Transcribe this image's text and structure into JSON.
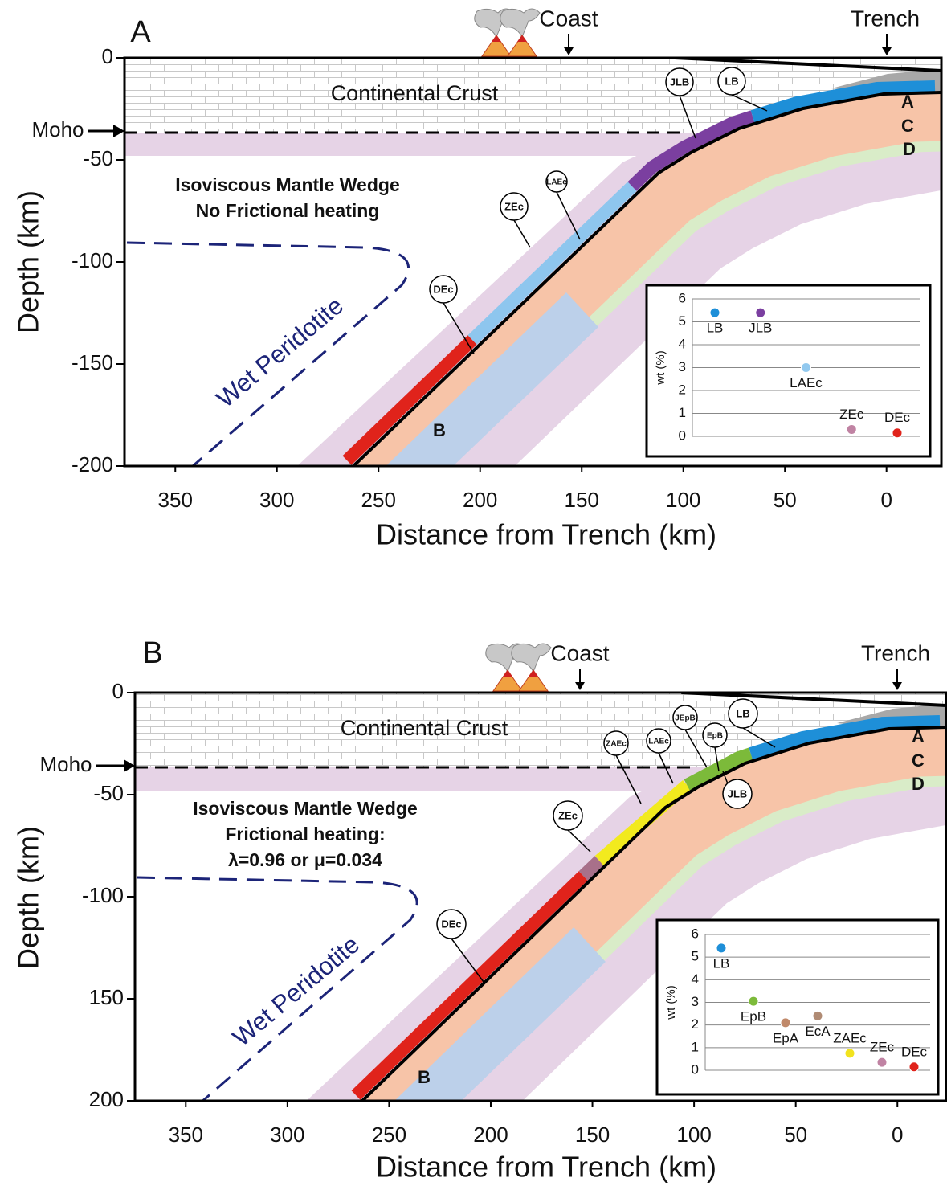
{
  "chart_data": [
    {
      "type": "subduction-section",
      "title": "A",
      "xlabel": "Distance from Trench (km)",
      "ylabel": "Depth (km)",
      "xlim": [
        375,
        -27
      ],
      "ylim": [
        -200,
        0
      ],
      "xticks": [
        350,
        300,
        250,
        200,
        150,
        100,
        50,
        0
      ],
      "yticks": [
        0,
        -50,
        -100,
        -150,
        -200
      ],
      "labels": {
        "coast": "Coast",
        "trench": "Trench",
        "crust": "Continental Crust",
        "moho": "Moho",
        "wedge": [
          "Isoviscous Mantle Wedge",
          "No Frictional heating"
        ],
        "peridotite": "Wet Peridotite",
        "layers": [
          "A",
          "C",
          "D",
          "B"
        ],
        "phases": [
          "JLB",
          "LB",
          "LAEc",
          "ZEc",
          "DEc"
        ]
      },
      "inset": {
        "type": "scatter",
        "ylabel": "wt (%)",
        "ylim": [
          0,
          6
        ],
        "yticks": [
          0,
          1,
          2,
          3,
          4,
          5,
          6
        ],
        "categories": [
          "LB",
          "JLB",
          "LAEc",
          "ZEc",
          "DEc"
        ],
        "values": [
          5.4,
          5.4,
          3.0,
          0.3,
          0.15
        ],
        "colors": [
          "#1e8fd8",
          "#7b3fa0",
          "#92c9ef",
          "#c083a3",
          "#e0231b"
        ]
      }
    },
    {
      "type": "subduction-section",
      "title": "B",
      "xlabel": "Distance from Trench (km)",
      "ylabel": "Depth (km)",
      "xlim": [
        375,
        -24
      ],
      "ylim": [
        -200,
        0
      ],
      "xticks": [
        350,
        300,
        250,
        200,
        150,
        100,
        50,
        0
      ],
      "yticks": [
        0,
        -50,
        -100,
        {
          "value": -150,
          "label": "150"
        },
        {
          "value": -200,
          "label": "200"
        }
      ],
      "labels": {
        "coast": "Coast",
        "trench": "Trench",
        "crust": "Continental Crust",
        "moho": "Moho",
        "wedge": [
          "Isoviscous Mantle Wedge",
          "Frictional heating:",
          "λ=0.96 or μ=0.034"
        ],
        "peridotite": "Wet Peridotite",
        "layers": [
          "A",
          "C",
          "D",
          "B"
        ],
        "phases": [
          "ZAEc",
          "LAEc",
          "JEpB",
          "EpB",
          "LB",
          "JLB",
          "ZEc",
          "DEc"
        ]
      },
      "inset": {
        "type": "scatter",
        "ylabel": "wt (%)",
        "ylim": [
          0,
          6
        ],
        "yticks": [
          0,
          1,
          2,
          3,
          4,
          5,
          6
        ],
        "categories": [
          "LB",
          "EpB",
          "EpA",
          "EcA",
          "ZAEc",
          "ZEc",
          "DEc"
        ],
        "values": [
          5.4,
          3.05,
          2.1,
          2.4,
          0.75,
          0.35,
          0.15
        ],
        "colors": [
          "#1e8fd8",
          "#7cba3a",
          "#c0896a",
          "#b08b74",
          "#f2e31e",
          "#c083a3",
          "#e0231b"
        ]
      }
    }
  ]
}
